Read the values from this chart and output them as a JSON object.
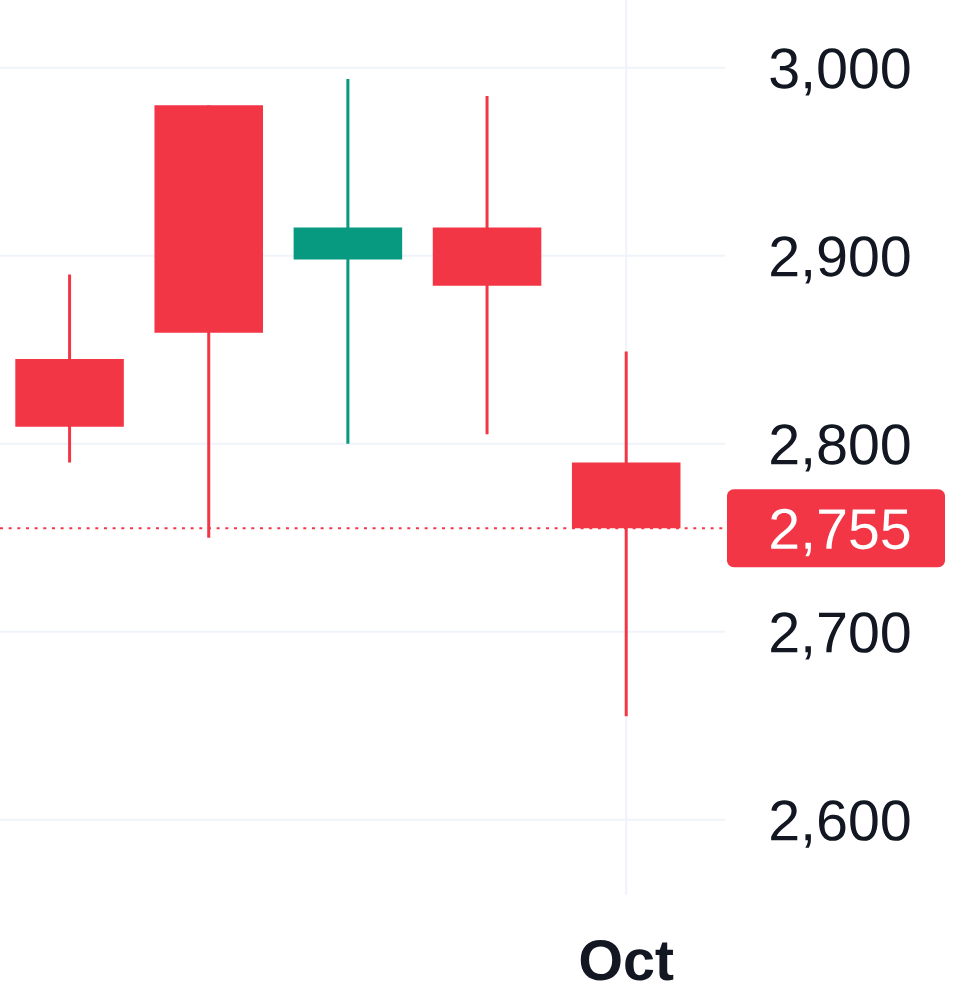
{
  "chart_data": {
    "type": "candlestick",
    "categories": [
      null,
      null,
      null,
      null,
      "Oct"
    ],
    "ohlc": [
      [
        2845,
        2890,
        2790,
        2809
      ],
      [
        2980,
        2980,
        2750,
        2859
      ],
      [
        2898,
        2994,
        2800,
        2915
      ],
      [
        2915,
        2985,
        2805,
        2884
      ],
      [
        2790,
        2849,
        2655,
        2755
      ]
    ],
    "colors": [
      "#f23645",
      "#f23645",
      "#089981",
      "#f23645",
      "#f23645"
    ],
    "ylim": [
      2560,
      3036
    ],
    "yticks": [
      {
        "value": 2600,
        "label": "2,600"
      },
      {
        "value": 2700,
        "label": "2,700"
      },
      {
        "value": 2800,
        "label": "2,800"
      },
      {
        "value": 2900,
        "label": "2,900"
      },
      {
        "value": 3000,
        "label": "3,000"
      }
    ],
    "ref_lines": [
      {
        "axis": "y",
        "value": 2755,
        "label": "2,755",
        "color": "#f23645",
        "line_style": "dotted"
      }
    ],
    "grid": true
  }
}
